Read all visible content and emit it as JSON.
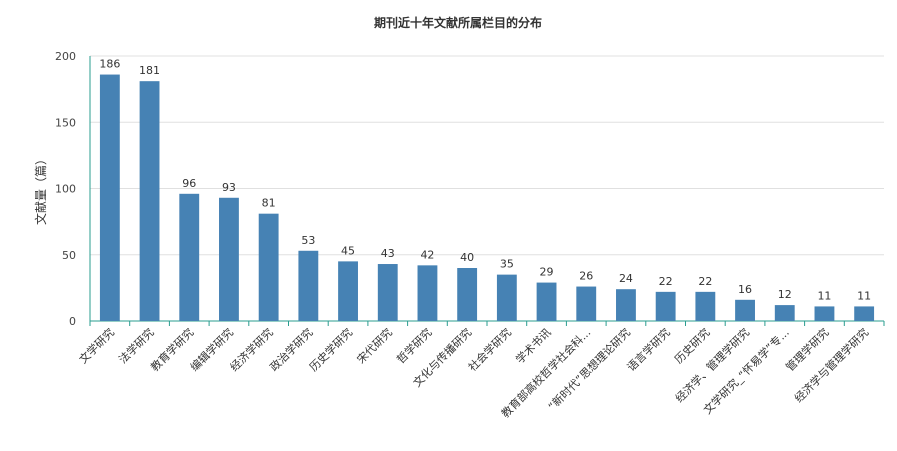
{
  "chart_data": {
    "type": "bar",
    "title": "期刊近十年文献所属栏目的分布",
    "ylabel": "文献量（篇）",
    "xlabel": "",
    "ylim": [
      0,
      200
    ],
    "yticks": [
      0,
      50,
      100,
      150,
      200
    ],
    "grid": true,
    "categories": [
      "文学研究",
      "法学研究",
      "教育学研究",
      "编辑学研究",
      "经济学研究",
      "政治学研究",
      "历史学研究",
      "宋代研究",
      "哲学研究",
      "文化与传播研究",
      "社会学研究",
      "学术书讯",
      "教育部高校哲学社会科...",
      "“新时代”思想理论研究",
      "语言学研究",
      "历史研究",
      "经济学、管理学研究",
      "文学研究_“怀易学”专...",
      "管理学研究",
      "经济学与管理学研究"
    ],
    "values": [
      186,
      181,
      96,
      93,
      81,
      53,
      45,
      43,
      42,
      40,
      35,
      29,
      26,
      24,
      22,
      22,
      16,
      12,
      11,
      11
    ],
    "bar_color": "#4682b4",
    "axis_color": "#2a9d8f"
  }
}
